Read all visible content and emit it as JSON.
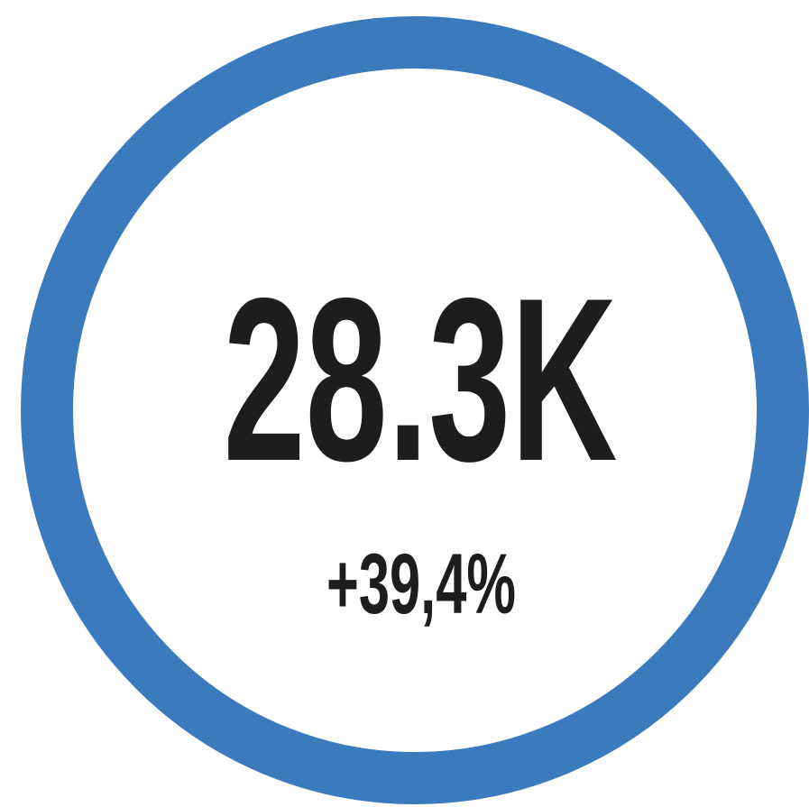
{
  "kpi": {
    "value": "28.3K",
    "change": "+39,4%"
  }
}
